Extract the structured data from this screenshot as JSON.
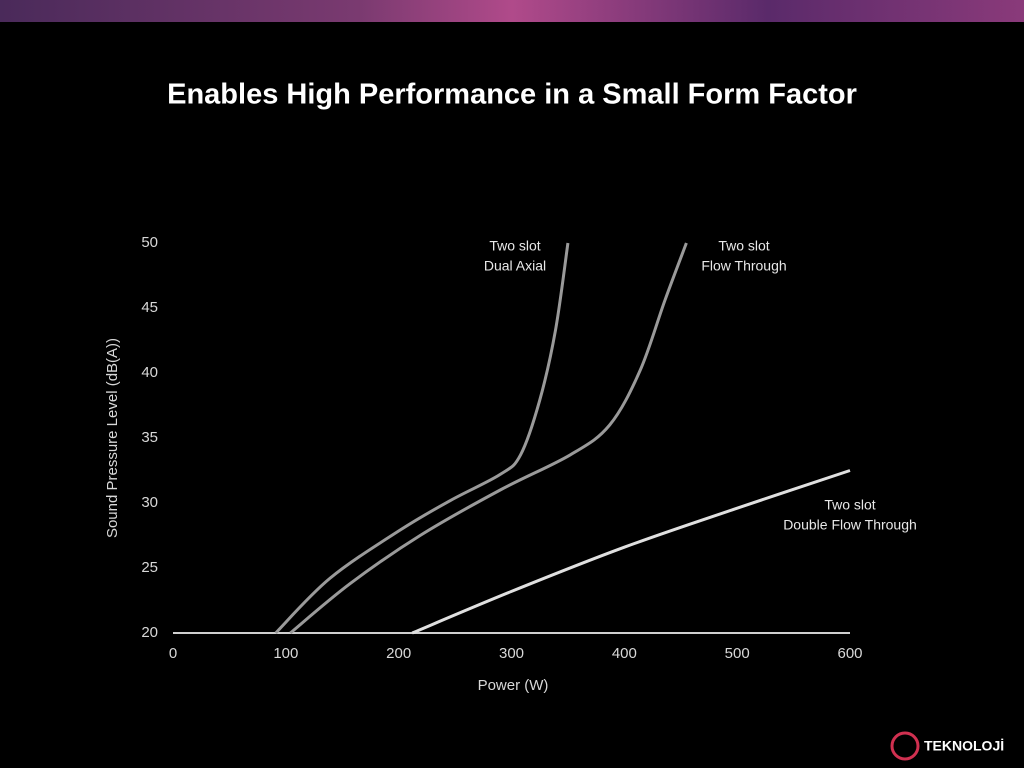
{
  "chart_data": {
    "type": "line",
    "title": "Enables High Performance in a Small Form Factor",
    "x_label": "Power (W)",
    "y_label": "Sound Pressure Level (dB(A))",
    "xlim": [
      0,
      600
    ],
    "xticks": [
      0,
      100,
      200,
      300,
      400,
      500,
      600
    ],
    "ylim": [
      20,
      50
    ],
    "yticks": [
      20,
      25,
      30,
      35,
      40,
      45,
      50
    ],
    "series": [
      {
        "label_lines": [
          "Two slot",
          "Dual Axial"
        ],
        "color": "#9a9a9a",
        "x": [
          91,
          139,
          201,
          246,
          290,
          308,
          325,
          339,
          350
        ],
        "values": [
          20,
          24.2,
          27.9,
          30.2,
          32.2,
          33.7,
          37.9,
          43.3,
          50
        ]
      },
      {
        "label_lines": [
          "Two slot",
          "Flow Through"
        ],
        "color": "#9a9a9a",
        "x": [
          104,
          157,
          219,
          290,
          352,
          387,
          414,
          436,
          455
        ],
        "values": [
          20,
          23.8,
          27.5,
          31,
          33.7,
          36,
          40.2,
          45.6,
          50
        ]
      },
      {
        "label_lines": [
          "Two slot",
          "Double Flow Through"
        ],
        "color": "#e0e0e0",
        "x": [
          212,
          300,
          400,
          500,
          600
        ],
        "values": [
          20,
          23.2,
          26.6,
          29.6,
          32.5
        ]
      }
    ],
    "watermark": "TEKNOLOJİ"
  }
}
